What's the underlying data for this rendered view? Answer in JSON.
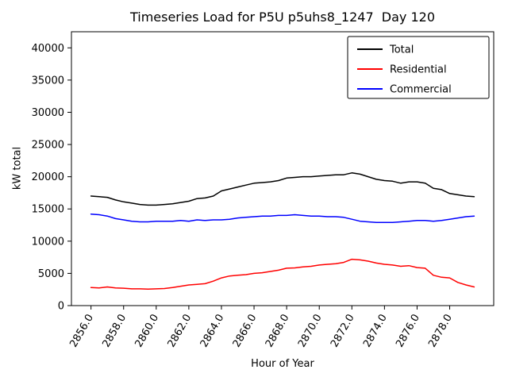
{
  "figure": {
    "title": "Timeseries Load for P5U p5uhs8_1247  Day 120",
    "xlabel": "Hour of Year",
    "ylabel": "kW total"
  },
  "chart_data": {
    "type": "line",
    "title": "Timeseries Load for P5U p5uhs8_1247  Day 120",
    "xlabel": "Hour of Year",
    "ylabel": "kW total",
    "grid": false,
    "legend_position": "upper right",
    "xlim": [
      2854.8,
      2880.7
    ],
    "ylim": [
      0,
      42500
    ],
    "xticks": [
      2856,
      2858,
      2860,
      2862,
      2864,
      2866,
      2868,
      2870,
      2872,
      2874,
      2876,
      2878
    ],
    "xtick_labels": [
      "2856.0",
      "2858.0",
      "2860.0",
      "2862.0",
      "2864.0",
      "2866.0",
      "2868.0",
      "2870.0",
      "2872.0",
      "2874.0",
      "2876.0",
      "2878.0"
    ],
    "yticks": [
      0,
      5000,
      10000,
      15000,
      20000,
      25000,
      30000,
      35000,
      40000
    ],
    "x": [
      2856,
      2856.5,
      2857,
      2857.5,
      2858,
      2858.5,
      2859,
      2859.5,
      2860,
      2860.5,
      2861,
      2861.5,
      2862,
      2862.5,
      2863,
      2863.5,
      2864,
      2864.5,
      2865,
      2865.5,
      2866,
      2866.5,
      2867,
      2867.5,
      2868,
      2868.5,
      2869,
      2869.5,
      2870,
      2870.5,
      2871,
      2871.5,
      2872,
      2872.5,
      2873,
      2873.5,
      2874,
      2874.5,
      2875,
      2875.5,
      2876,
      2876.5,
      2877,
      2877.5,
      2878,
      2878.5,
      2879,
      2879.5
    ],
    "series": [
      {
        "name": "Total",
        "color": "#000000",
        "values": [
          17000,
          16900,
          16800,
          16400,
          16100,
          15900,
          15700,
          15600,
          15600,
          15700,
          15800,
          16000,
          16200,
          16600,
          16700,
          17000,
          17800,
          18100,
          18400,
          18700,
          19000,
          19100,
          19200,
          19400,
          19800,
          19900,
          20000,
          20000,
          20100,
          20200,
          20300,
          20300,
          20600,
          20400,
          20000,
          19600,
          19400,
          19300,
          19000,
          19200,
          19200,
          19000,
          18200,
          18000,
          17400,
          17200,
          17000,
          16900
        ]
      },
      {
        "name": "Residential",
        "color": "#ff0000",
        "values": [
          2800,
          2750,
          2900,
          2750,
          2700,
          2600,
          2600,
          2550,
          2600,
          2650,
          2800,
          3000,
          3200,
          3300,
          3400,
          3800,
          4300,
          4600,
          4700,
          4800,
          5000,
          5100,
          5300,
          5500,
          5800,
          5850,
          6000,
          6100,
          6300,
          6400,
          6500,
          6700,
          7200,
          7100,
          6900,
          6600,
          6400,
          6300,
          6100,
          6200,
          5900,
          5800,
          4700,
          4400,
          4300,
          3600,
          3200,
          2900
        ]
      },
      {
        "name": "Commercial",
        "color": "#0000ff",
        "values": [
          14200,
          14100,
          13900,
          13500,
          13300,
          13100,
          13000,
          13000,
          13100,
          13100,
          13100,
          13200,
          13100,
          13300,
          13200,
          13300,
          13300,
          13400,
          13600,
          13700,
          13800,
          13900,
          13900,
          14000,
          14000,
          14100,
          14000,
          13900,
          13900,
          13800,
          13800,
          13700,
          13400,
          13100,
          13000,
          12900,
          12900,
          12900,
          13000,
          13100,
          13200,
          13200,
          13100,
          13200,
          13400,
          13600,
          13800,
          13900
        ]
      }
    ]
  }
}
